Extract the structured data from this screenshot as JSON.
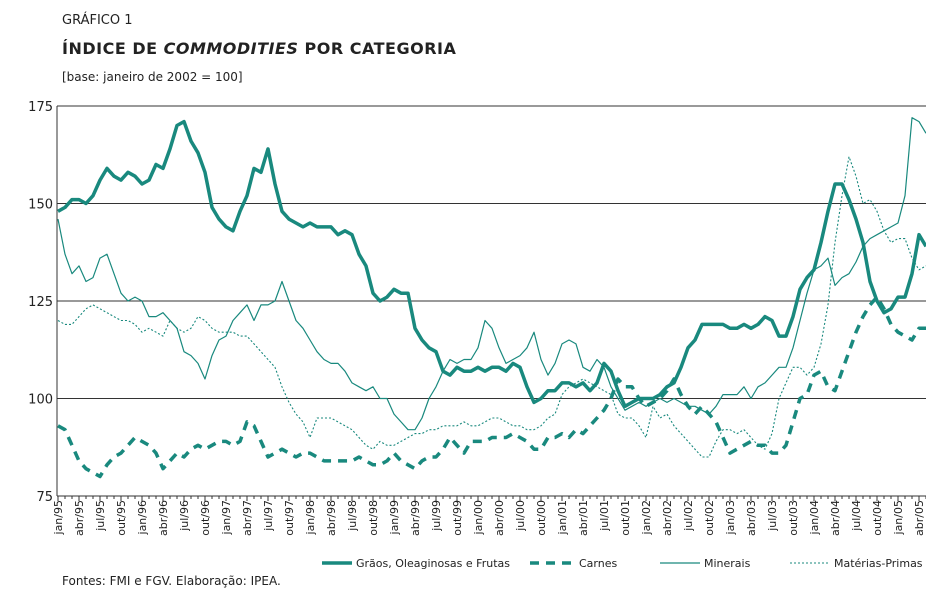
{
  "chart_data": {
    "type": "line",
    "label": "GRÁFICO 1",
    "title": {
      "before": "ÍNDICE DE",
      "italic": "COMMODITIES",
      "after": "POR CATEGORIA"
    },
    "subtitle": "[base: janeiro de 2002 = 100]",
    "source": "Fontes: FMI e FGV. Elaboração: IPEA.",
    "ylim": [
      75,
      175
    ],
    "yticks": [
      75,
      100,
      125,
      150,
      175
    ],
    "grid": true,
    "legend": "bottom",
    "categories": [
      "jan/95",
      null,
      null,
      "abr/95",
      null,
      null,
      "jul/95",
      null,
      null,
      "out/95",
      null,
      null,
      "jan/96",
      null,
      null,
      "abr/96",
      null,
      null,
      "jul/96",
      null,
      null,
      "out/96",
      null,
      null,
      "jan/97",
      null,
      null,
      "abr/97",
      null,
      null,
      "jul/97",
      null,
      null,
      "out/97",
      null,
      null,
      "jan/98",
      null,
      null,
      "abr/98",
      null,
      null,
      "jul/98",
      null,
      null,
      "out/98",
      null,
      null,
      "jan/99",
      null,
      null,
      "abr/99",
      null,
      null,
      "jul/99",
      null,
      null,
      "out/99",
      null,
      null,
      "jan/00",
      null,
      null,
      "abr/00",
      null,
      null,
      "jul/00",
      null,
      null,
      "out/00",
      null,
      null,
      "jan/01",
      null,
      null,
      "abr/01",
      null,
      null,
      "jul/01",
      null,
      null,
      "out/01",
      null,
      null,
      "jan/02",
      null,
      null,
      "abr/02",
      null,
      null,
      "jul/02",
      null,
      null,
      "out/02",
      null,
      null,
      "jan/03",
      null,
      null,
      "abr/03",
      null,
      null,
      "jul/03",
      null,
      null,
      "out/03",
      null,
      null,
      "jan/04",
      null,
      null,
      "abr/04",
      null,
      null,
      "jul/04",
      null,
      null,
      "out/04",
      null,
      null,
      "jan/05",
      null,
      null,
      "abr/05",
      null
    ],
    "series": [
      {
        "name": "Grãos, Oleaginosas e Frutas",
        "color": "#19897e",
        "line_width": 3.5,
        "dash": "none",
        "values": [
          148,
          149,
          151,
          151,
          150,
          152,
          156,
          159,
          157,
          156,
          158,
          157,
          155,
          156,
          160,
          159,
          164,
          170,
          171,
          166,
          163,
          158,
          149,
          146,
          144,
          143,
          148,
          152,
          159,
          158,
          164,
          155,
          148,
          146,
          145,
          144,
          145,
          144,
          144,
          144,
          142,
          143,
          142,
          137,
          134,
          127,
          125,
          126,
          128,
          127,
          127,
          118,
          115,
          113,
          112,
          107,
          106,
          108,
          107,
          107,
          108,
          107,
          108,
          108,
          107,
          109,
          108,
          103,
          99,
          100,
          102,
          102,
          104,
          104,
          103,
          104,
          102,
          104,
          109,
          107,
          102,
          98,
          99,
          100,
          100,
          100,
          101,
          103,
          104,
          108,
          113,
          115,
          119,
          119,
          119,
          119,
          118,
          118,
          119,
          118,
          119,
          121,
          120,
          116,
          116,
          121,
          128,
          131,
          133,
          140,
          148,
          155,
          155,
          151,
          146,
          140,
          130,
          125,
          122,
          123,
          126,
          126,
          132,
          142,
          139
        ]
      },
      {
        "name": "Carnes",
        "color": "#19897e",
        "line_width": 3.5,
        "dash": "9 7",
        "values": [
          93,
          92,
          88,
          84,
          82,
          81,
          80,
          83,
          85,
          86,
          88,
          90,
          89,
          88,
          86,
          82,
          84,
          86,
          85,
          87,
          88,
          87,
          88,
          89,
          89,
          88,
          89,
          94,
          93,
          89,
          85,
          86,
          87,
          86,
          85,
          86,
          86,
          85,
          84,
          84,
          84,
          84,
          84,
          85,
          84,
          83,
          83,
          84,
          86,
          84,
          83,
          82,
          84,
          85,
          85,
          87,
          90,
          88,
          86,
          89,
          89,
          89,
          90,
          90,
          90,
          91,
          90,
          89,
          87,
          87,
          90,
          90,
          91,
          90,
          92,
          91,
          93,
          95,
          97,
          100,
          105,
          103,
          103,
          100,
          98,
          99,
          100,
          102,
          105,
          101,
          98,
          96,
          98,
          96,
          94,
          90,
          86,
          87,
          88,
          89,
          88,
          88,
          86,
          86,
          88,
          94,
          100,
          101,
          106,
          107,
          103,
          102,
          107,
          112,
          117,
          121,
          124,
          126,
          123,
          119,
          117,
          116,
          115,
          118,
          118
        ]
      },
      {
        "name": "Minerais",
        "color": "#19897e",
        "line_width": 1.2,
        "dash": "none",
        "values": [
          146,
          137,
          132,
          134,
          130,
          131,
          136,
          137,
          132,
          127,
          125,
          126,
          125,
          121,
          121,
          122,
          120,
          118,
          112,
          111,
          109,
          105,
          111,
          115,
          116,
          120,
          122,
          124,
          120,
          124,
          124,
          125,
          130,
          125,
          120,
          118,
          115,
          112,
          110,
          109,
          109,
          107,
          104,
          103,
          102,
          103,
          100,
          100,
          96,
          94,
          92,
          92,
          95,
          100,
          103,
          107,
          110,
          109,
          110,
          110,
          113,
          120,
          118,
          113,
          109,
          110,
          111,
          113,
          117,
          110,
          106,
          109,
          114,
          115,
          114,
          108,
          107,
          110,
          108,
          103,
          100,
          97,
          98,
          99,
          98,
          99,
          100,
          99,
          100,
          99,
          98,
          98,
          97,
          96,
          98,
          101,
          101,
          101,
          103,
          100,
          103,
          104,
          106,
          108,
          108,
          113,
          120,
          127,
          133,
          134,
          136,
          129,
          131,
          132,
          135,
          139,
          141,
          142,
          143,
          144,
          145,
          152,
          172,
          171,
          168
        ]
      },
      {
        "name": "Matérias-Primas",
        "color": "#19897e",
        "line_width": 1.1,
        "dash": "2 2",
        "values": [
          120,
          119,
          119,
          121,
          123,
          124,
          123,
          122,
          121,
          120,
          120,
          119,
          117,
          118,
          117,
          116,
          120,
          118,
          117,
          118,
          121,
          120,
          118,
          117,
          117,
          117,
          116,
          116,
          114,
          112,
          110,
          108,
          103,
          99,
          96,
          94,
          90,
          95,
          95,
          95,
          94,
          93,
          92,
          90,
          88,
          87,
          89,
          88,
          88,
          89,
          90,
          91,
          91,
          92,
          92,
          93,
          93,
          93,
          94,
          93,
          93,
          94,
          95,
          95,
          94,
          93,
          93,
          92,
          92,
          93,
          95,
          96,
          101,
          103,
          104,
          105,
          104,
          103,
          102,
          101,
          96,
          95,
          95,
          93,
          90,
          98,
          95,
          96,
          93,
          91,
          89,
          87,
          85,
          85,
          89,
          92,
          92,
          91,
          92,
          90,
          88,
          87,
          91,
          100,
          104,
          108,
          108,
          106,
          108,
          114,
          124,
          140,
          152,
          162,
          157,
          150,
          151,
          148,
          143,
          140,
          141,
          141,
          136,
          133,
          134
        ]
      }
    ]
  }
}
